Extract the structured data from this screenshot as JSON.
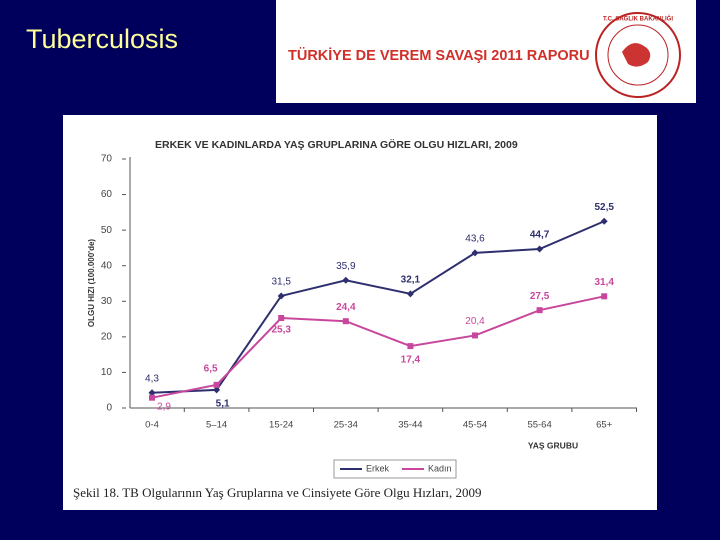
{
  "slide_title": "Tuberculosis",
  "banner": {
    "title": "TÜRKİYE DE VEREM SAVAŞI 2011 RAPORU",
    "logo_text": "T.C. SAĞLIK BAKANLIĞI"
  },
  "caption": "Şekil 18. TB Olgularının Yaş Gruplarına ve Cinsiyete Göre Olgu Hızları, 2009",
  "chart_data": {
    "type": "line",
    "title": "ERKEK VE KADINLARDA YAŞ GRUPLARINA GÖRE OLGU HIZLARI, 2009",
    "y_label": "OLGU HIZI (100.000'de)",
    "x_label": "YAŞ GRUBU",
    "categories": [
      "0-4",
      "5–14",
      "15-24",
      "25-34",
      "35-44",
      "45-54",
      "55-64",
      "65+"
    ],
    "series": [
      {
        "name": "Erkek",
        "color": "#2e2f6e",
        "marker": "diamond",
        "values": [
          4.3,
          5.1,
          31.5,
          35.9,
          32.1,
          43.6,
          44.7,
          52.5
        ],
        "value_labels": [
          "4,3",
          "5,1",
          "31,5",
          "35,9",
          "32,1",
          "43,6",
          "44,7",
          "52,5"
        ]
      },
      {
        "name": "Kadın",
        "color": "#c8479c",
        "marker": "square",
        "values": [
          2.9,
          6.5,
          25.3,
          24.4,
          17.4,
          20.4,
          27.5,
          31.4
        ],
        "value_labels": [
          "2,9",
          "6,5",
          "25,3",
          "24,4",
          "17,4",
          "20,4",
          "27,5",
          "31,4"
        ]
      }
    ],
    "ylim": [
      0,
      70
    ],
    "yticks": [
      0,
      10,
      20,
      30,
      40,
      50,
      60,
      70
    ],
    "grid": false,
    "legend": "bottom"
  }
}
